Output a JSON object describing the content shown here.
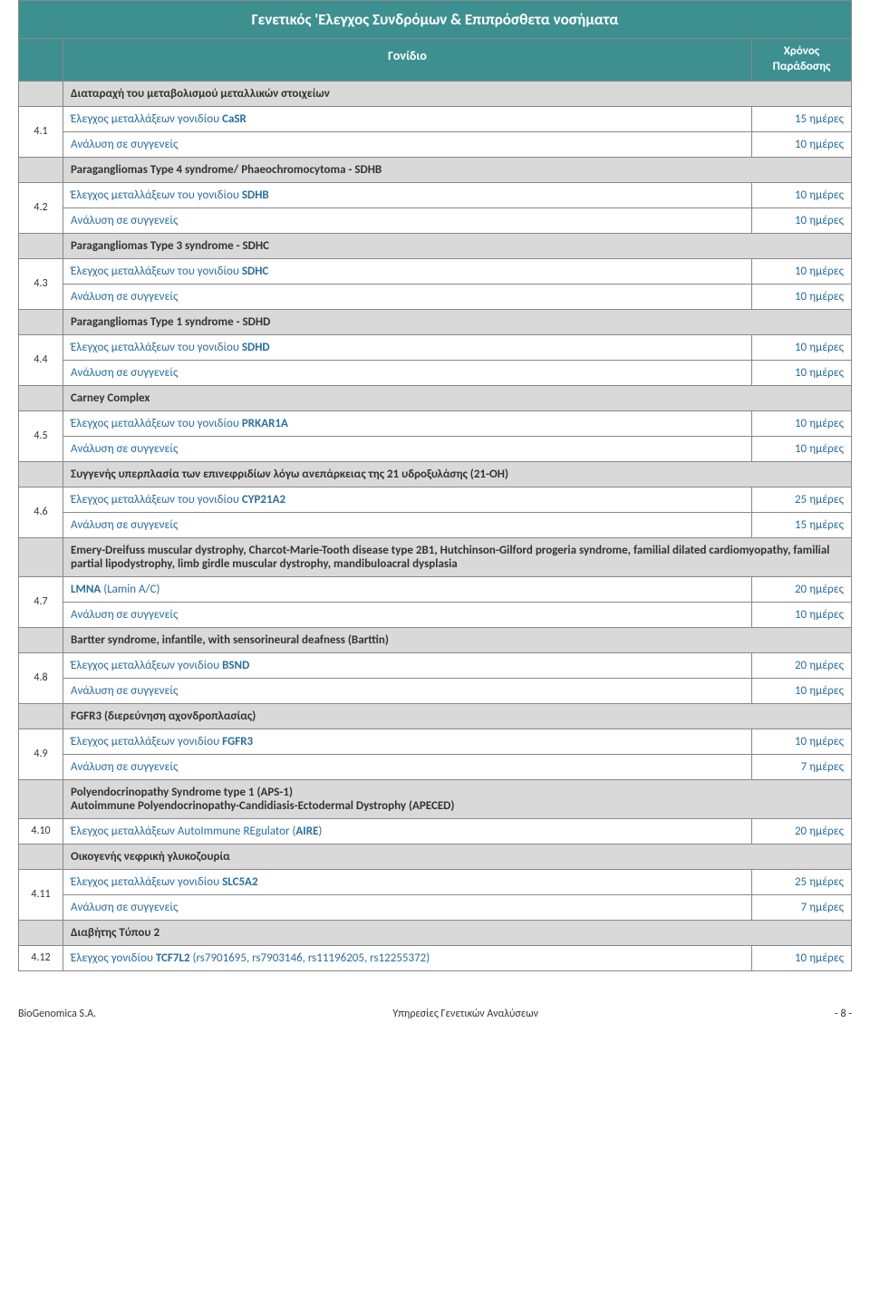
{
  "main_title": "Γενετικός 'Ελεγχος Συνδρόμων & Επιπρόσθετα νοσήματα",
  "col_gene": "Γονίδιο",
  "col_time": "Χρόνος Παράδοσης",
  "sections": [
    {
      "title": "Διαταραχή του μεταβολισμού μεταλλικών στοιχείων",
      "num": "4.1",
      "rows": [
        {
          "desc_pre": "Έλεγχος μεταλλάξεων γονιδίου ",
          "gene": "CaSR",
          "time": "15 ημέρες"
        },
        {
          "desc_pre": "Ανάλυση σε συγγενείς",
          "gene": "",
          "time": "10 ημέρες"
        }
      ]
    },
    {
      "title": "Paragangliomas Type 4 syndrome/ Phaeochromocytoma - SDHB",
      "num": "4.2",
      "rows": [
        {
          "desc_pre": "Έλεγχος μεταλλάξεων του γονιδίου ",
          "gene": "SDHB",
          "time": "10 ημέρες"
        },
        {
          "desc_pre": "Ανάλυση σε συγγενείς",
          "gene": "",
          "time": "10 ημέρες"
        }
      ]
    },
    {
      "title": "Paragangliomas Type 3 syndrome - SDHC",
      "num": "4.3",
      "rows": [
        {
          "desc_pre": "Έλεγχος μεταλλάξεων του γονιδίου ",
          "gene": "SDHC",
          "time": "10 ημέρες"
        },
        {
          "desc_pre": "Ανάλυση σε συγγενείς",
          "gene": "",
          "time": "10 ημέρες"
        }
      ]
    },
    {
      "title": "Paragangliomas Type 1 syndrome - SDHD",
      "num": "4.4",
      "rows": [
        {
          "desc_pre": "Έλεγχος μεταλλάξεων του γονιδίου ",
          "gene": "SDHD",
          "time": "10 ημέρες"
        },
        {
          "desc_pre": "Ανάλυση σε συγγενείς",
          "gene": "",
          "time": "10 ημέρες"
        }
      ]
    },
    {
      "title": "Carney Complex",
      "num": "4.5",
      "rows": [
        {
          "desc_pre": "Έλεγχος μεταλλάξεων του γονιδίου ",
          "gene": "PRKAR1A",
          "time": "10 ημέρες"
        },
        {
          "desc_pre": "Ανάλυση σε συγγενείς",
          "gene": "",
          "time": "10 ημέρες"
        }
      ]
    },
    {
      "title": "Συγγενής υπερπλασία των επινεφριδίων λόγω ανεπάρκειας της 21 υδροξυλάσης (21-OH)",
      "num": "4.6",
      "rows": [
        {
          "desc_pre": "Έλεγχος μεταλλάξεων του γονιδίου ",
          "gene": "CYP21A2",
          "time": "25 ημέρες"
        },
        {
          "desc_pre": "Ανάλυση σε συγγενείς",
          "gene": "",
          "time": "15 ημέρες"
        }
      ]
    },
    {
      "title": "Emery-Dreifuss muscular dystrophy, Charcot-Marie-Tooth disease type 2B1, Hutchinson-Gilford progeria syndrome, familial dilated cardiomyopathy, familial partial lipodystrophy, limb girdle muscular dystrophy, mandibuloacral dysplasia",
      "num": "4.7",
      "rows": [
        {
          "desc_pre": "",
          "gene": "LMNA",
          "desc_post": " (Lamin A/C)",
          "time": "20 ημέρες"
        },
        {
          "desc_pre": "Ανάλυση σε συγγενείς",
          "gene": "",
          "time": "10 ημέρες"
        }
      ]
    },
    {
      "title": "Bartter syndrome, infantile, with sensorineural deafness (Barttin)",
      "num": "4.8",
      "rows": [
        {
          "desc_pre": "Έλεγχος μεταλλάξεων γονιδίου ",
          "gene": "BSND",
          "time": "20 ημέρες"
        },
        {
          "desc_pre": "Ανάλυση σε συγγενείς",
          "gene": "",
          "time": "10 ημέρες"
        }
      ]
    },
    {
      "title": "FGFR3 (διερεύνηση αχονδροπλασίας)",
      "num": "4.9",
      "rows": [
        {
          "desc_pre": "Έλεγχος μεταλλάξεων γονιδίου ",
          "gene": "FGFR3",
          "time": "10 ημέρες"
        },
        {
          "desc_pre": "Ανάλυση σε συγγενείς",
          "gene": "",
          "time": "7 ημέρες"
        }
      ]
    },
    {
      "title": "Polyendocrinopathy Syndrome type 1 (APS-1)\nAutoimmune Polyendocrinopathy-Candidiasis-Ectodermal Dystrophy (APECED)",
      "num": "4.10",
      "single": true,
      "rows": [
        {
          "desc_pre": "Έλεγχος μεταλλάξεων AutoImmune REgulator (",
          "gene": "AIRE",
          "desc_post": ")",
          "time": "20 ημέρες"
        }
      ]
    },
    {
      "title": "Οικογενής νεφρική γλυκοζουρία",
      "num": "4.11",
      "rows": [
        {
          "desc_pre": "Έλεγχος μεταλλάξεων γονιδίου ",
          "gene": "SLC5A2",
          "time": "25 ημέρες"
        },
        {
          "desc_pre": "Ανάλυση σε συγγενείς",
          "gene": "",
          "time": "7 ημέρες"
        }
      ]
    },
    {
      "title": "Διαβήτης Τύπου 2",
      "num": "4.12",
      "single": true,
      "rows": [
        {
          "desc_pre": "Έλεγχος γονιδίου ",
          "gene": "TCF7L2",
          "desc_post": " (rs7901695, rs7903146, rs11196205, rs12255372)",
          "time": "10 ημέρες"
        }
      ]
    }
  ],
  "footer_left": "BioGenomica S.A.",
  "footer_center": "Υπηρεσίες Γενετικών Αναλύσεων",
  "footer_right": "- 8 -"
}
